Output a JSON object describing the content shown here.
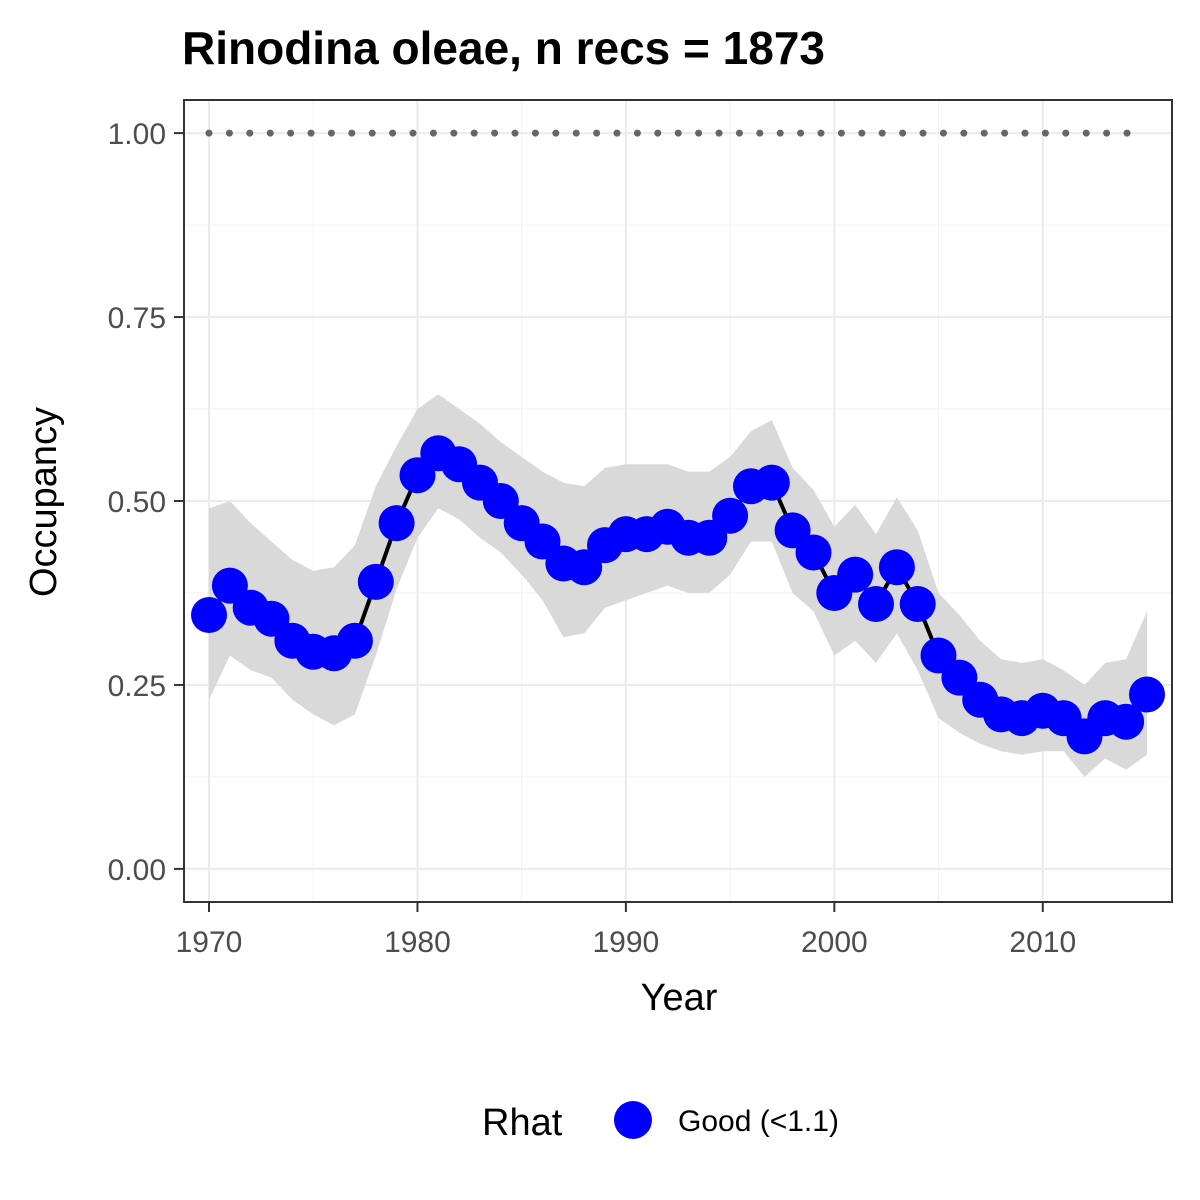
{
  "chart_data": {
    "type": "line",
    "title": "Rinodina oleae, n recs = 1873",
    "xlabel": "Year",
    "ylabel": "Occupancy",
    "xlim": [
      1968.8,
      2016.2
    ],
    "ylim": [
      -0.045,
      1.045
    ],
    "x_ticks": [
      1970,
      1980,
      1990,
      2000,
      2010
    ],
    "x_tick_labels": [
      "1970",
      "1980",
      "1990",
      "2000",
      "2010"
    ],
    "y_ticks": [
      0,
      0.25,
      0.5,
      0.75,
      1.0
    ],
    "y_tick_labels": [
      "0.00",
      "0.25",
      "0.50",
      "0.75",
      "1.00"
    ],
    "grid": true,
    "legend_position": "bottom",
    "legend": {
      "title": "Rhat",
      "items": [
        {
          "label": "Good (<1.1)",
          "color": "#0000ff"
        }
      ]
    },
    "colors": {
      "points": "#0000ff",
      "line": "#000000",
      "ribbon": "#d9d9d9",
      "reference_line": "#666666"
    },
    "reference_line": {
      "y": 1.0,
      "style": "dotted"
    },
    "series": [
      {
        "name": "Occupancy",
        "x": [
          1970,
          1971,
          1972,
          1973,
          1974,
          1975,
          1976,
          1977,
          1978,
          1979,
          1980,
          1981,
          1982,
          1983,
          1984,
          1985,
          1986,
          1987,
          1988,
          1989,
          1990,
          1991,
          1992,
          1993,
          1994,
          1995,
          1996,
          1997,
          1998,
          1999,
          2000,
          2001,
          2002,
          2003,
          2004,
          2005,
          2006,
          2007,
          2008,
          2009,
          2010,
          2011,
          2012,
          2013,
          2014,
          2015
        ],
        "y": [
          0.345,
          0.385,
          0.355,
          0.34,
          0.31,
          0.295,
          0.293,
          0.31,
          0.39,
          0.47,
          0.535,
          0.565,
          0.55,
          0.525,
          0.5,
          0.47,
          0.445,
          0.415,
          0.41,
          0.44,
          0.455,
          0.455,
          0.465,
          0.45,
          0.45,
          0.48,
          0.52,
          0.525,
          0.46,
          0.43,
          0.375,
          0.4,
          0.36,
          0.41,
          0.36,
          0.29,
          0.26,
          0.23,
          0.21,
          0.205,
          0.215,
          0.205,
          0.18,
          0.205,
          0.2,
          0.237
        ],
        "lower": [
          0.23,
          0.29,
          0.27,
          0.26,
          0.23,
          0.21,
          0.195,
          0.21,
          0.29,
          0.38,
          0.45,
          0.49,
          0.475,
          0.45,
          0.43,
          0.4,
          0.365,
          0.315,
          0.32,
          0.355,
          0.365,
          0.375,
          0.385,
          0.375,
          0.375,
          0.4,
          0.445,
          0.445,
          0.375,
          0.35,
          0.29,
          0.31,
          0.28,
          0.32,
          0.27,
          0.205,
          0.185,
          0.17,
          0.16,
          0.155,
          0.16,
          0.16,
          0.125,
          0.15,
          0.135,
          0.155
        ],
        "upper": [
          0.49,
          0.5,
          0.47,
          0.445,
          0.42,
          0.405,
          0.41,
          0.44,
          0.52,
          0.575,
          0.625,
          0.645,
          0.625,
          0.605,
          0.58,
          0.56,
          0.54,
          0.525,
          0.52,
          0.545,
          0.55,
          0.55,
          0.55,
          0.54,
          0.54,
          0.56,
          0.595,
          0.61,
          0.545,
          0.515,
          0.465,
          0.495,
          0.455,
          0.505,
          0.46,
          0.375,
          0.345,
          0.31,
          0.285,
          0.28,
          0.285,
          0.27,
          0.25,
          0.28,
          0.285,
          0.35
        ]
      }
    ]
  }
}
